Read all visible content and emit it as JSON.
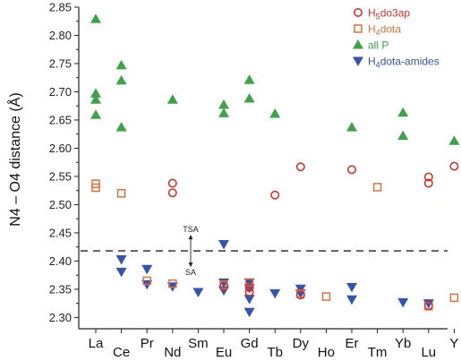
{
  "chart_data": {
    "type": "scatter",
    "title": "",
    "xlabel": "",
    "ylabel": "N4 – O4 distance (Å)",
    "ylim": [
      2.28,
      2.85
    ],
    "yticks": [
      "2.30",
      "2.35",
      "2.40",
      "2.45",
      "2.50",
      "2.55",
      "2.60",
      "2.65",
      "2.70",
      "2.75",
      "2.80",
      "2.85"
    ],
    "categories": [
      "La",
      "Ce",
      "Pr",
      "Nd",
      "Sm",
      "Eu",
      "Gd",
      "Tb",
      "Dy",
      "Ho",
      "Er",
      "Tm",
      "Yb",
      "Lu",
      "Y"
    ],
    "reference_line": {
      "y": 2.418,
      "style": "dashed"
    },
    "annotations": {
      "upper": "TSA",
      "lower": "SA"
    },
    "legend_position": "top-right",
    "series": [
      {
        "name": "H5do3ap",
        "label_parts": [
          "H",
          "5",
          "do3ap"
        ],
        "marker": "circle-open",
        "color": "#d9312a",
        "points": [
          [
            "Nd",
            2.538
          ],
          [
            "Nd",
            2.521
          ],
          [
            "Tb",
            2.517
          ],
          [
            "Dy",
            2.567
          ],
          [
            "Er",
            2.562
          ],
          [
            "Lu",
            2.549
          ],
          [
            "Lu",
            2.538
          ],
          [
            "Y",
            2.568
          ],
          [
            "Eu",
            2.355
          ],
          [
            "Gd",
            2.353
          ],
          [
            "Gd",
            2.345
          ],
          [
            "Dy",
            2.34
          ],
          [
            "Lu",
            2.321
          ]
        ]
      },
      {
        "name": "H4dota",
        "label_parts": [
          "H",
          "4",
          "dota"
        ],
        "marker": "square-open",
        "color": "#e0703a",
        "points": [
          [
            "La",
            2.537
          ],
          [
            "La",
            2.53
          ],
          [
            "Ce",
            2.52
          ],
          [
            "Tm",
            2.531
          ],
          [
            "Pr",
            2.365
          ],
          [
            "Nd",
            2.36
          ],
          [
            "Eu",
            2.358
          ],
          [
            "Gd",
            2.362
          ],
          [
            "Dy",
            2.342
          ],
          [
            "Ho",
            2.337
          ],
          [
            "Lu",
            2.32
          ],
          [
            "Y",
            2.335
          ]
        ]
      },
      {
        "name": "all P",
        "label_parts": [
          "all P"
        ],
        "marker": "triangle-up",
        "color": "#3ea348",
        "points": [
          [
            "La",
            2.829
          ],
          [
            "La",
            2.697
          ],
          [
            "La",
            2.686
          ],
          [
            "La",
            2.659
          ],
          [
            "Ce",
            2.747
          ],
          [
            "Ce",
            2.72
          ],
          [
            "Ce",
            2.637
          ],
          [
            "Nd",
            2.686
          ],
          [
            "Eu",
            2.677
          ],
          [
            "Eu",
            2.662
          ],
          [
            "Gd",
            2.721
          ],
          [
            "Gd",
            2.688
          ],
          [
            "Tb",
            2.661
          ],
          [
            "Er",
            2.637
          ],
          [
            "Yb",
            2.663
          ],
          [
            "Yb",
            2.622
          ],
          [
            "Y",
            2.613
          ]
        ]
      },
      {
        "name": "H4dota-amides",
        "label_parts": [
          "H",
          "4",
          "dota-amides"
        ],
        "marker": "triangle-down",
        "color": "#3454b0",
        "points": [
          [
            "Ce",
            2.403
          ],
          [
            "Ce",
            2.381
          ],
          [
            "Pr",
            2.386
          ],
          [
            "Pr",
            2.359
          ],
          [
            "Nd",
            2.355
          ],
          [
            "Sm",
            2.345
          ],
          [
            "Eu",
            2.43
          ],
          [
            "Eu",
            2.362
          ],
          [
            "Eu",
            2.348
          ],
          [
            "Gd",
            2.362
          ],
          [
            "Gd",
            2.352
          ],
          [
            "Gd",
            2.333
          ],
          [
            "Gd",
            2.31
          ],
          [
            "Tb",
            2.343
          ],
          [
            "Dy",
            2.351
          ],
          [
            "Dy",
            2.343
          ],
          [
            "Er",
            2.354
          ],
          [
            "Er",
            2.332
          ],
          [
            "Yb",
            2.327
          ],
          [
            "Lu",
            2.325
          ]
        ]
      }
    ]
  }
}
